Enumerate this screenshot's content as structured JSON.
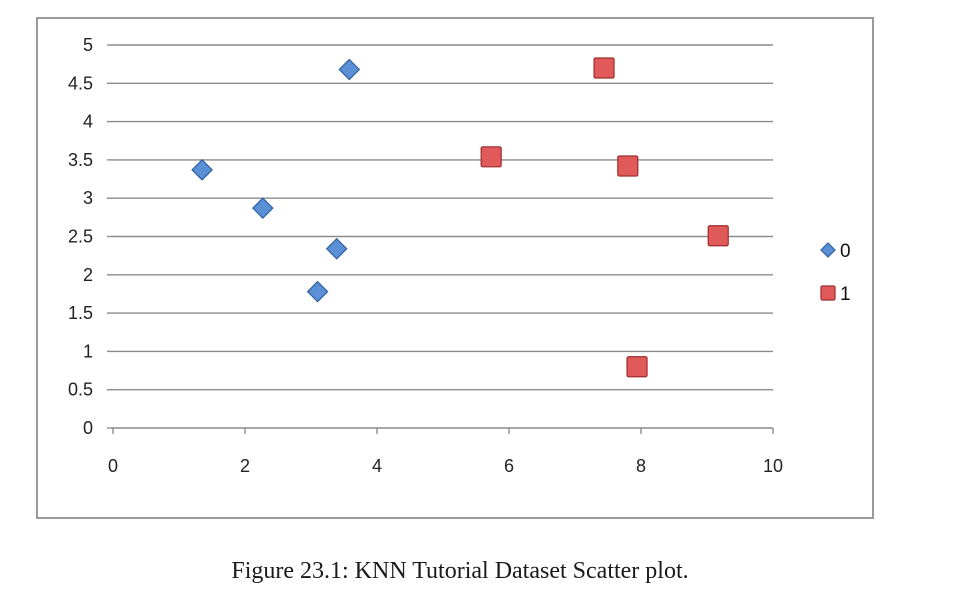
{
  "caption": "Figure 23.1: KNN Tutorial Dataset Scatter plot.",
  "colors": {
    "series_0": "#5b8fd6",
    "series_0_stroke": "#2f5f9f",
    "series_1": "#e05a5a",
    "series_1_stroke": "#9e2d2d",
    "gridline": "#8c8c8c",
    "frame": "#9a9a9a"
  },
  "chart_data": {
    "type": "scatter",
    "title": "",
    "xlabel": "",
    "ylabel": "",
    "xlim": [
      0,
      10
    ],
    "ylim": [
      0,
      5
    ],
    "xticks": [
      "0",
      "2",
      "4",
      "6",
      "8",
      "10"
    ],
    "yticks": [
      "0",
      "0.5",
      "1",
      "1.5",
      "2",
      "2.5",
      "3",
      "3.5",
      "4",
      "4.5",
      "5"
    ],
    "grid": "horizontal",
    "legend_position": "right",
    "series": [
      {
        "name": "0",
        "marker": "diamond",
        "x": [
          1.35,
          2.27,
          3.1,
          3.39,
          3.58
        ],
        "y": [
          3.37,
          2.87,
          1.78,
          2.34,
          4.68
        ]
      },
      {
        "name": "1",
        "marker": "square",
        "x": [
          5.73,
          7.44,
          7.8,
          7.94,
          9.17
        ],
        "y": [
          3.54,
          4.7,
          3.42,
          0.8,
          2.51
        ]
      }
    ]
  }
}
